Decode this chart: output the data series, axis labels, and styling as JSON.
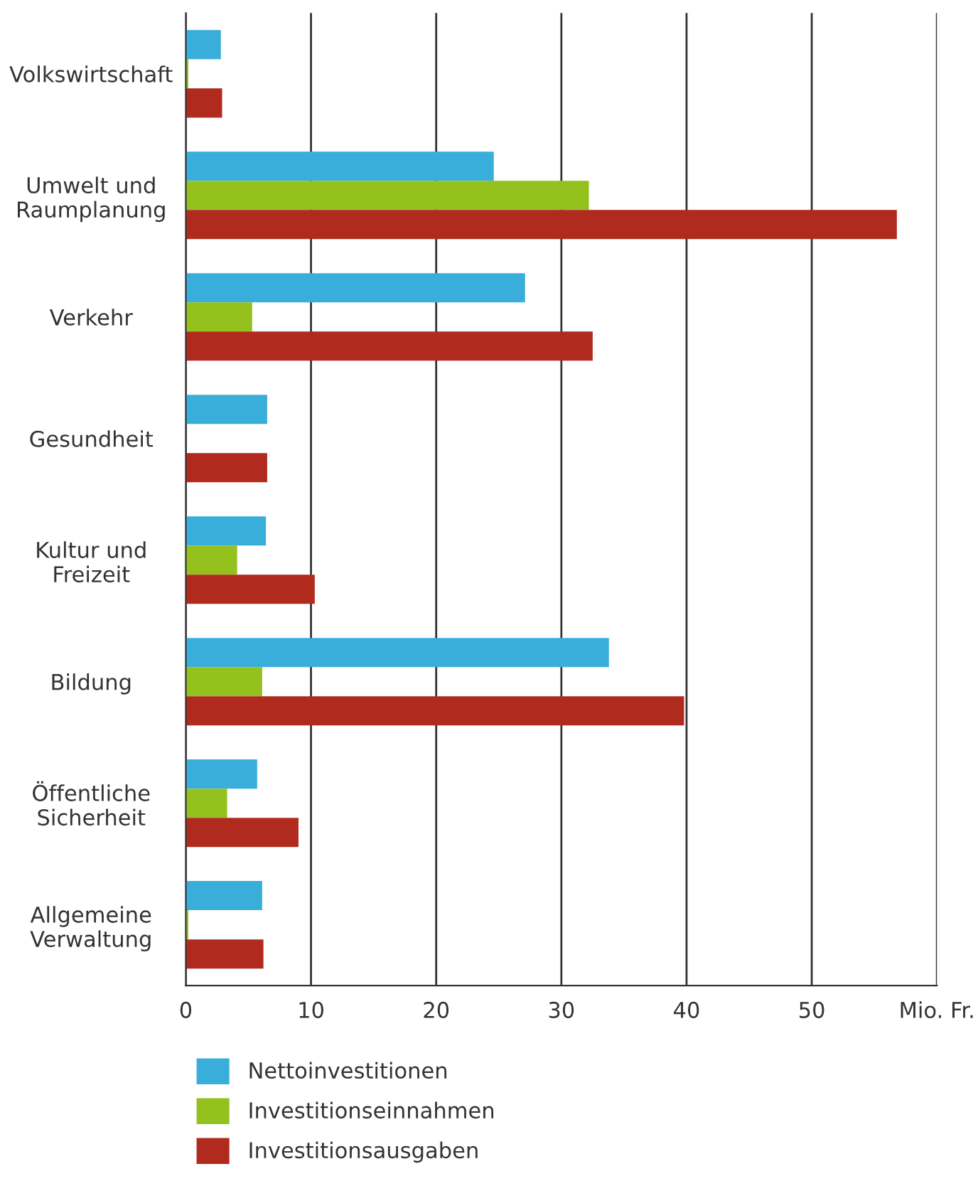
{
  "chart_data": {
    "type": "bar",
    "orientation": "horizontal",
    "categories": [
      "Volkswirtschaft",
      "Umwelt und\nRaumplanung",
      "Verkehr",
      "Gesundheit",
      "Kultur und\nFreizeit",
      "Bildung",
      "Öffentliche\nSicherheit",
      "Allgemeine\nVerwaltung"
    ],
    "series": [
      {
        "name": "Nettoinvestitionen",
        "color": "#3aaedb",
        "values": [
          2.8,
          24.6,
          27.1,
          6.5,
          6.4,
          33.8,
          5.7,
          6.1
        ]
      },
      {
        "name": "Investitionseinnahmen",
        "color": "#95c11f",
        "values": [
          0.2,
          32.2,
          5.3,
          null,
          4.1,
          6.1,
          3.3,
          0.2
        ]
      },
      {
        "name": "Investitionsausgaben",
        "color": "#b02a1e",
        "values": [
          2.9,
          56.8,
          32.5,
          6.5,
          10.3,
          39.8,
          9.0,
          6.2
        ]
      }
    ],
    "xlim": [
      0,
      60
    ],
    "xticks": [
      0,
      10,
      20,
      30,
      40,
      50,
      {
        "value": 60,
        "label": "Mio. Fr."
      }
    ],
    "grid": "x",
    "legend": "bottom"
  }
}
